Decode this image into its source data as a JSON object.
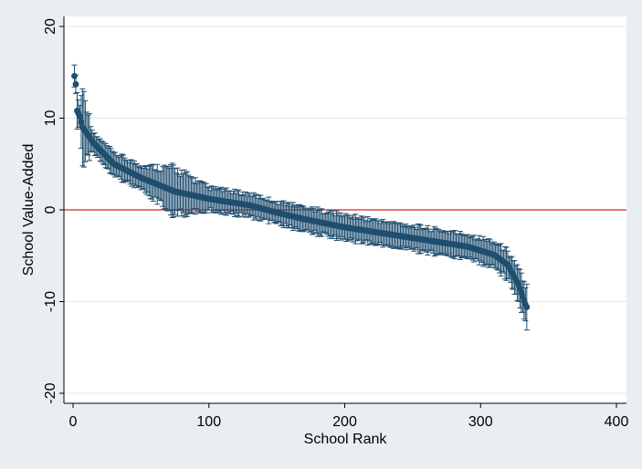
{
  "chart_data": {
    "type": "scatter",
    "title": "",
    "xlabel": "School Rank",
    "ylabel": "School Value-Added",
    "xlim": [
      0,
      400
    ],
    "ylim": [
      -20,
      20
    ],
    "x_ticks": [
      0,
      100,
      200,
      300,
      400
    ],
    "y_ticks": [
      20,
      10,
      0,
      -10,
      -20
    ],
    "x_tick_labels": [
      "0",
      "100",
      "200",
      "300",
      "400"
    ],
    "y_tick_labels": [
      "20",
      "10",
      "0",
      "-10",
      "-20"
    ],
    "reference_line": {
      "y": 0,
      "color": "#d62728"
    },
    "grid": true,
    "n_points": 334,
    "marker_color": "#1f4e6e",
    "error_bars": true,
    "anchor_points": [
      {
        "rank": 1,
        "value": 14.6,
        "se": 1.2
      },
      {
        "rank": 2,
        "value": 13.7,
        "se": 1.0
      },
      {
        "rank": 3,
        "value": 10.8,
        "se": 2.0
      },
      {
        "rank": 5,
        "value": 10.2,
        "se": 1.2
      },
      {
        "rank": 7,
        "value": 9.0,
        "se": 4.2
      },
      {
        "rank": 15,
        "value": 7.3,
        "se": 1.0
      },
      {
        "rank": 30,
        "value": 5.0,
        "se": 1.2
      },
      {
        "rank": 50,
        "value": 3.5,
        "se": 1.3
      },
      {
        "rank": 75,
        "value": 2.0,
        "se": 2.5
      },
      {
        "rank": 100,
        "value": 1.2,
        "se": 1.2
      },
      {
        "rank": 130,
        "value": 0.5,
        "se": 1.2
      },
      {
        "rank": 150,
        "value": -0.3,
        "se": 1.2
      },
      {
        "rank": 170,
        "value": -1.0,
        "se": 1.3
      },
      {
        "rank": 200,
        "value": -1.9,
        "se": 1.3
      },
      {
        "rank": 230,
        "value": -2.6,
        "se": 1.3
      },
      {
        "rank": 260,
        "value": -3.3,
        "se": 1.3
      },
      {
        "rank": 290,
        "value": -4.0,
        "se": 1.3
      },
      {
        "rank": 310,
        "value": -4.9,
        "se": 1.4
      },
      {
        "rank": 320,
        "value": -6.0,
        "se": 1.5
      },
      {
        "rank": 328,
        "value": -8.2,
        "se": 1.8
      },
      {
        "rank": 333,
        "value": -10.3,
        "se": 1.8
      },
      {
        "rank": 334,
        "value": -10.6,
        "se": 2.5
      }
    ]
  }
}
